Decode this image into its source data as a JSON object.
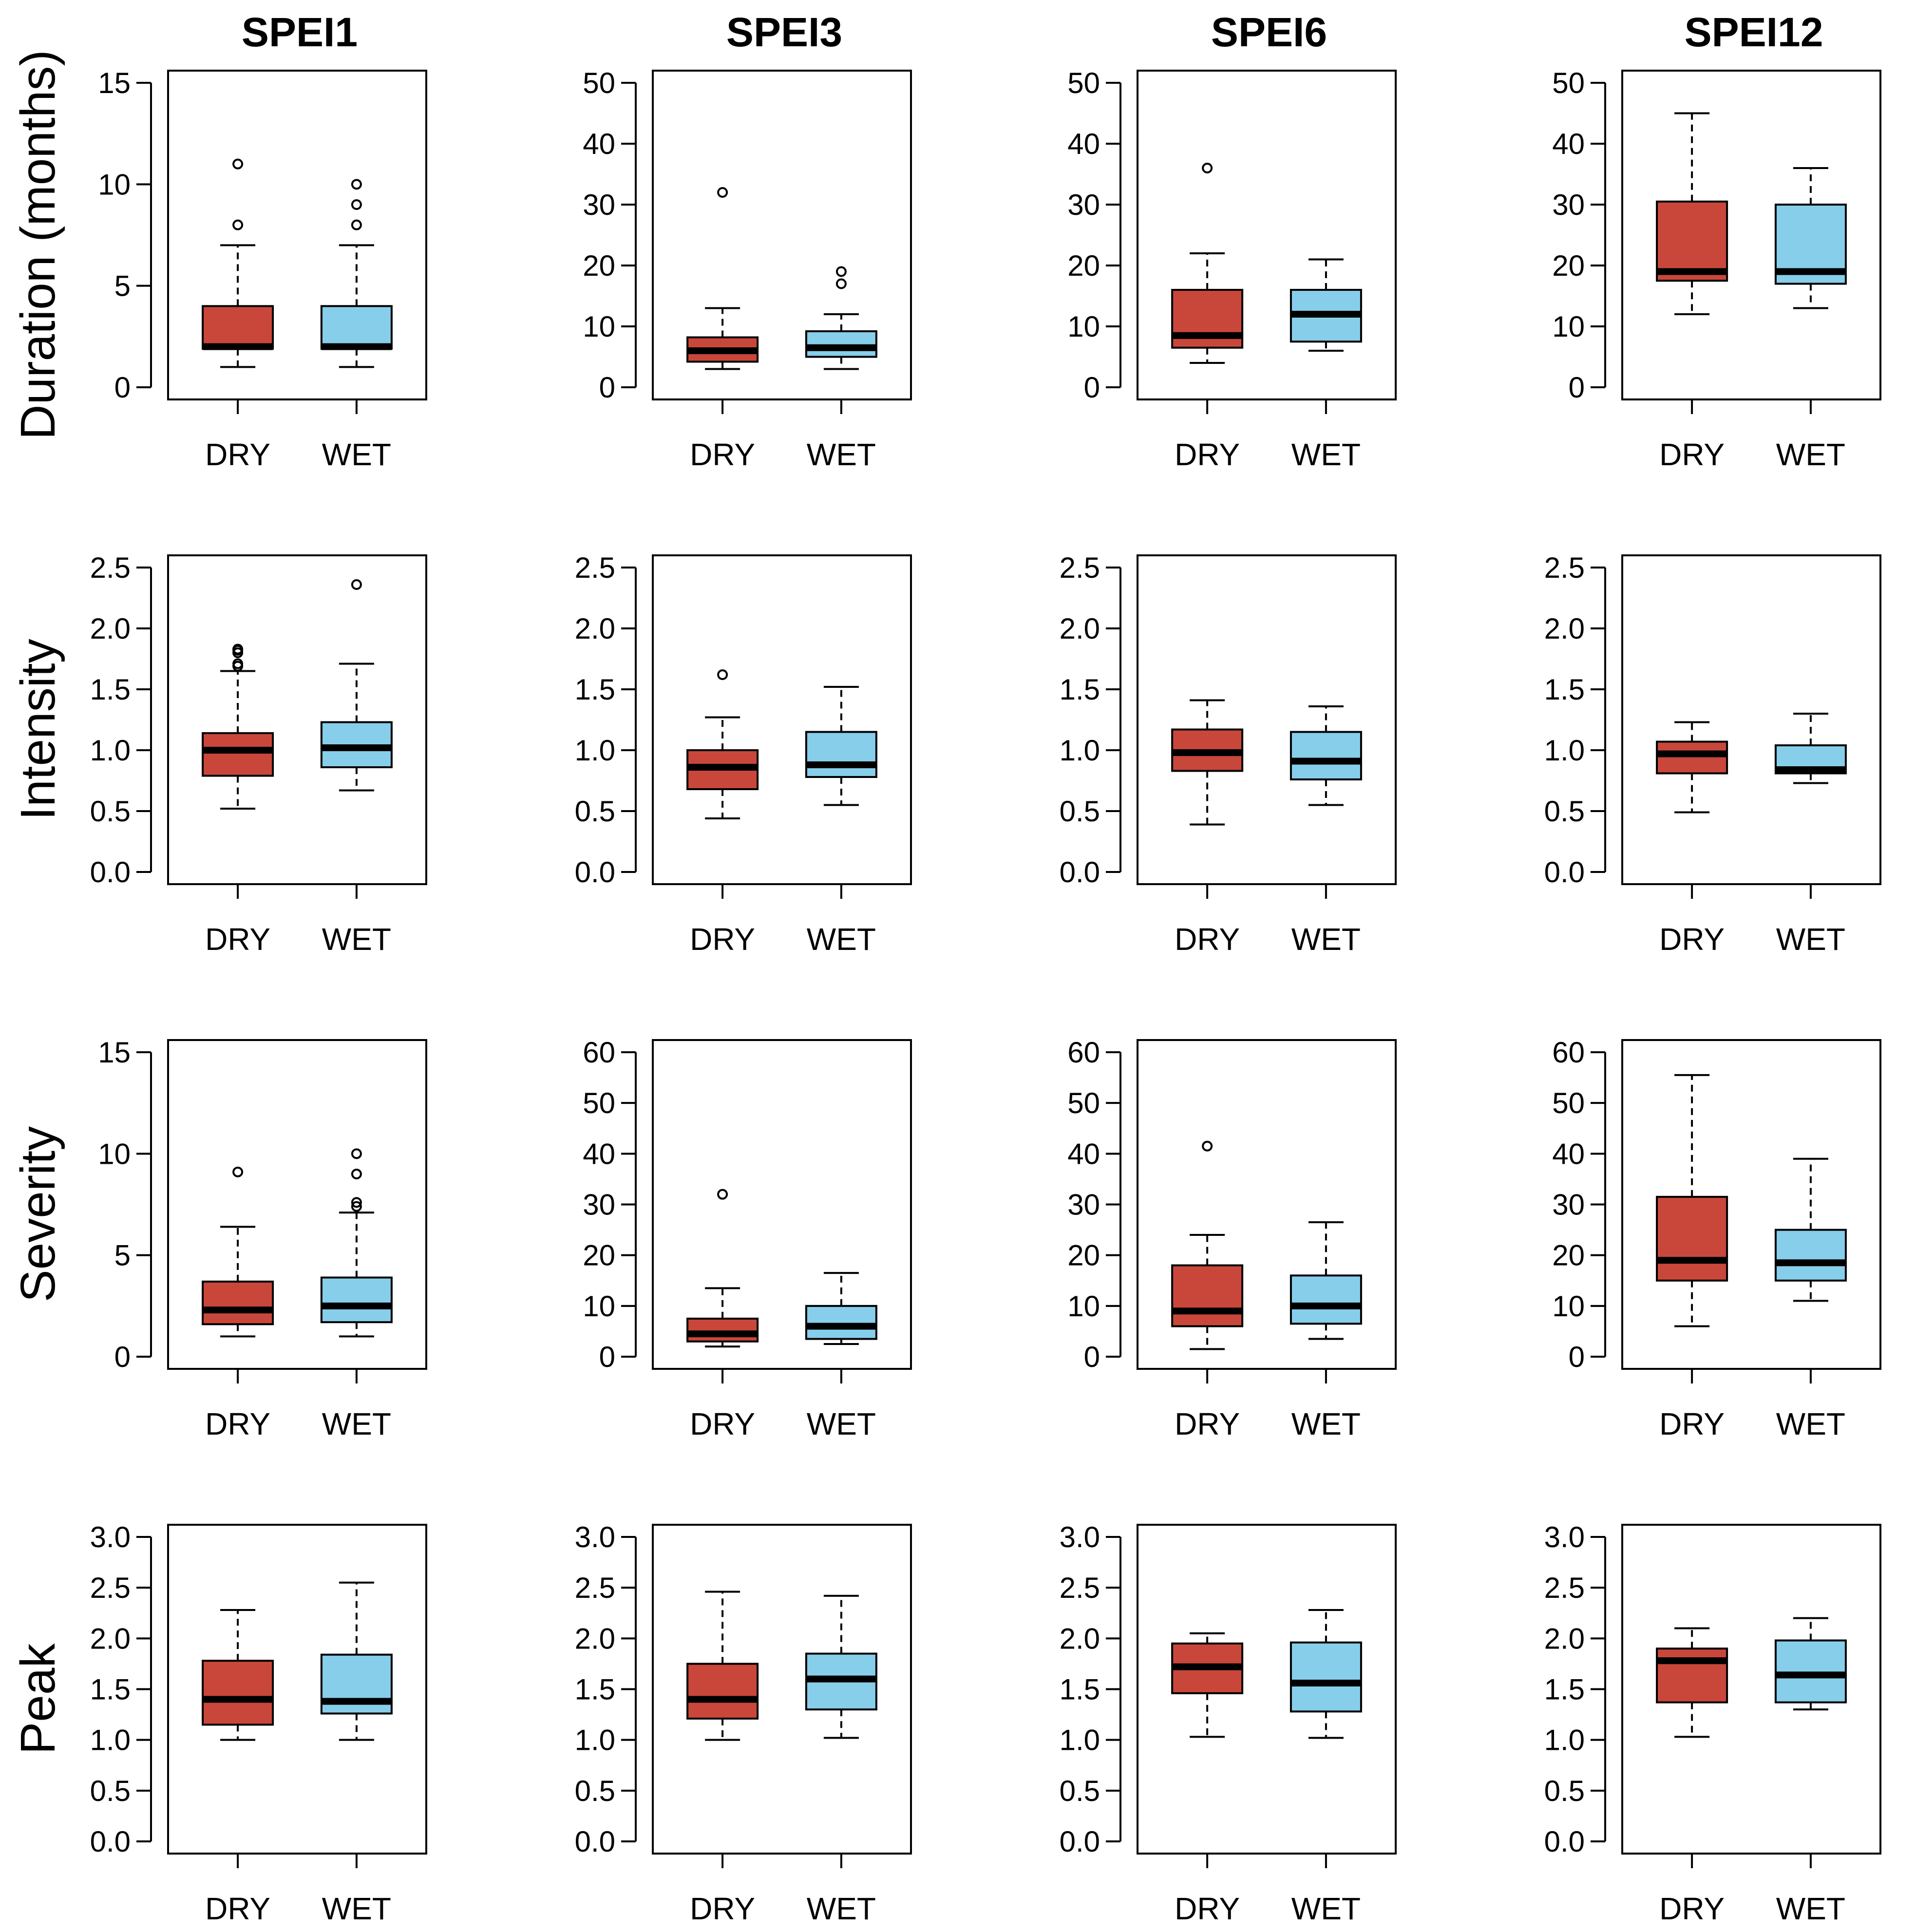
{
  "chart_data": {
    "type": "boxplot",
    "columns": [
      "SPEI1",
      "SPEI3",
      "SPEI6",
      "SPEI12"
    ],
    "rows": [
      "Duration (months)",
      "Intensity",
      "Severity",
      "Peak"
    ],
    "categories": [
      "DRY",
      "WET"
    ],
    "colors": {
      "DRY": "#c9473a",
      "WET": "#87ceeb",
      "line": "#000000"
    },
    "panels": [
      {
        "row": 0,
        "col": 0,
        "ylim": [
          0,
          15
        ],
        "yticks": [
          "0",
          "5",
          "10",
          "15"
        ],
        "boxes": [
          {
            "category": "DRY",
            "whisker_low": 1,
            "q1": 1.9,
            "median": 2,
            "q3": 4,
            "whisker_high": 7,
            "outliers": [
              8,
              11
            ]
          },
          {
            "category": "WET",
            "whisker_low": 1,
            "q1": 1.9,
            "median": 2,
            "q3": 4,
            "whisker_high": 7,
            "outliers": [
              8,
              9,
              10
            ]
          }
        ]
      },
      {
        "row": 0,
        "col": 1,
        "ylim": [
          0,
          50
        ],
        "yticks": [
          "0",
          "10",
          "20",
          "30",
          "40",
          "50"
        ],
        "boxes": [
          {
            "category": "DRY",
            "whisker_low": 3,
            "q1": 4.2,
            "median": 6,
            "q3": 8.2,
            "whisker_high": 13,
            "outliers": [
              32
            ]
          },
          {
            "category": "WET",
            "whisker_low": 3,
            "q1": 5,
            "median": 6.5,
            "q3": 9.2,
            "whisker_high": 12,
            "outliers": [
              17,
              19
            ]
          }
        ]
      },
      {
        "row": 0,
        "col": 2,
        "ylim": [
          0,
          50
        ],
        "yticks": [
          "0",
          "10",
          "20",
          "30",
          "40",
          "50"
        ],
        "boxes": [
          {
            "category": "DRY",
            "whisker_low": 4,
            "q1": 6.5,
            "median": 8.5,
            "q3": 16,
            "whisker_high": 22,
            "outliers": [
              36
            ]
          },
          {
            "category": "WET",
            "whisker_low": 6,
            "q1": 7.5,
            "median": 12,
            "q3": 16,
            "whisker_high": 21,
            "outliers": []
          }
        ]
      },
      {
        "row": 0,
        "col": 3,
        "ylim": [
          0,
          50
        ],
        "yticks": [
          "0",
          "10",
          "20",
          "30",
          "40",
          "50"
        ],
        "boxes": [
          {
            "category": "DRY",
            "whisker_low": 12,
            "q1": 17.5,
            "median": 19,
            "q3": 30.5,
            "whisker_high": 45,
            "outliers": []
          },
          {
            "category": "WET",
            "whisker_low": 13,
            "q1": 17,
            "median": 19,
            "q3": 30,
            "whisker_high": 36,
            "outliers": []
          }
        ]
      },
      {
        "row": 1,
        "col": 0,
        "ylim": [
          0,
          2.5
        ],
        "yticks": [
          "0.0",
          "0.5",
          "1.0",
          "1.5",
          "2.0",
          "2.5"
        ],
        "boxes": [
          {
            "category": "DRY",
            "whisker_low": 0.52,
            "q1": 0.79,
            "median": 1.0,
            "q3": 1.14,
            "whisker_high": 1.65,
            "outliers": [
              1.69,
              1.71,
              1.8,
              1.82,
              1.83
            ]
          },
          {
            "category": "WET",
            "whisker_low": 0.67,
            "q1": 0.86,
            "median": 1.02,
            "q3": 1.23,
            "whisker_high": 1.71,
            "outliers": [
              2.36
            ]
          }
        ]
      },
      {
        "row": 1,
        "col": 1,
        "ylim": [
          0,
          2.5
        ],
        "yticks": [
          "0.0",
          "0.5",
          "1.0",
          "1.5",
          "2.0",
          "2.5"
        ],
        "boxes": [
          {
            "category": "DRY",
            "whisker_low": 0.44,
            "q1": 0.68,
            "median": 0.86,
            "q3": 1.0,
            "whisker_high": 1.27,
            "outliers": [
              1.62
            ]
          },
          {
            "category": "WET",
            "whisker_low": 0.55,
            "q1": 0.78,
            "median": 0.88,
            "q3": 1.15,
            "whisker_high": 1.52,
            "outliers": []
          }
        ]
      },
      {
        "row": 1,
        "col": 2,
        "ylim": [
          0,
          2.5
        ],
        "yticks": [
          "0.0",
          "0.5",
          "1.0",
          "1.5",
          "2.0",
          "2.5"
        ],
        "boxes": [
          {
            "category": "DRY",
            "whisker_low": 0.39,
            "q1": 0.83,
            "median": 0.98,
            "q3": 1.17,
            "whisker_high": 1.41,
            "outliers": []
          },
          {
            "category": "WET",
            "whisker_low": 0.55,
            "q1": 0.76,
            "median": 0.91,
            "q3": 1.15,
            "whisker_high": 1.36,
            "outliers": []
          }
        ]
      },
      {
        "row": 1,
        "col": 3,
        "ylim": [
          0,
          2.5
        ],
        "yticks": [
          "0.0",
          "0.5",
          "1.0",
          "1.5",
          "2.0",
          "2.5"
        ],
        "boxes": [
          {
            "category": "DRY",
            "whisker_low": 0.49,
            "q1": 0.81,
            "median": 0.97,
            "q3": 1.07,
            "whisker_high": 1.23,
            "outliers": []
          },
          {
            "category": "WET",
            "whisker_low": 0.73,
            "q1": 0.81,
            "median": 0.84,
            "q3": 1.04,
            "whisker_high": 1.3,
            "outliers": []
          }
        ]
      },
      {
        "row": 2,
        "col": 0,
        "ylim": [
          0,
          15
        ],
        "yticks": [
          "0",
          "5",
          "10",
          "15"
        ],
        "boxes": [
          {
            "category": "DRY",
            "whisker_low": 1,
            "q1": 1.6,
            "median": 2.3,
            "q3": 3.7,
            "whisker_high": 6.4,
            "outliers": [
              9.1
            ]
          },
          {
            "category": "WET",
            "whisker_low": 1,
            "q1": 1.7,
            "median": 2.5,
            "q3": 3.9,
            "whisker_high": 7.1,
            "outliers": [
              7.4,
              7.6,
              9,
              10
            ]
          }
        ]
      },
      {
        "row": 2,
        "col": 1,
        "ylim": [
          0,
          60
        ],
        "yticks": [
          "0",
          "10",
          "20",
          "30",
          "40",
          "50",
          "60"
        ],
        "boxes": [
          {
            "category": "DRY",
            "whisker_low": 2,
            "q1": 3,
            "median": 4.5,
            "q3": 7.5,
            "whisker_high": 13.5,
            "outliers": [
              32
            ]
          },
          {
            "category": "WET",
            "whisker_low": 2.5,
            "q1": 3.5,
            "median": 6,
            "q3": 10,
            "whisker_high": 16.5,
            "outliers": []
          }
        ]
      },
      {
        "row": 2,
        "col": 2,
        "ylim": [
          0,
          60
        ],
        "yticks": [
          "0",
          "10",
          "20",
          "30",
          "40",
          "50",
          "60"
        ],
        "boxes": [
          {
            "category": "DRY",
            "whisker_low": 1.5,
            "q1": 6,
            "median": 9,
            "q3": 18,
            "whisker_high": 24,
            "outliers": [
              41.5
            ]
          },
          {
            "category": "WET",
            "whisker_low": 3.5,
            "q1": 6.5,
            "median": 10,
            "q3": 16,
            "whisker_high": 26.5,
            "outliers": []
          }
        ]
      },
      {
        "row": 2,
        "col": 3,
        "ylim": [
          0,
          60
        ],
        "yticks": [
          "0",
          "10",
          "20",
          "30",
          "40",
          "50",
          "60"
        ],
        "boxes": [
          {
            "category": "DRY",
            "whisker_low": 6,
            "q1": 15,
            "median": 19,
            "q3": 31.5,
            "whisker_high": 55.5,
            "outliers": []
          },
          {
            "category": "WET",
            "whisker_low": 11,
            "q1": 15,
            "median": 18.5,
            "q3": 25,
            "whisker_high": 39,
            "outliers": []
          }
        ]
      },
      {
        "row": 3,
        "col": 0,
        "ylim": [
          0,
          3
        ],
        "yticks": [
          "0.0",
          "0.5",
          "1.0",
          "1.5",
          "2.0",
          "2.5",
          "3.0"
        ],
        "boxes": [
          {
            "category": "DRY",
            "whisker_low": 1.0,
            "q1": 1.15,
            "median": 1.4,
            "q3": 1.78,
            "whisker_high": 2.28,
            "outliers": []
          },
          {
            "category": "WET",
            "whisker_low": 1.0,
            "q1": 1.26,
            "median": 1.38,
            "q3": 1.84,
            "whisker_high": 2.55,
            "outliers": []
          }
        ]
      },
      {
        "row": 3,
        "col": 1,
        "ylim": [
          0,
          3
        ],
        "yticks": [
          "0.0",
          "0.5",
          "1.0",
          "1.5",
          "2.0",
          "2.5",
          "3.0"
        ],
        "boxes": [
          {
            "category": "DRY",
            "whisker_low": 1.0,
            "q1": 1.21,
            "median": 1.4,
            "q3": 1.75,
            "whisker_high": 2.46,
            "outliers": []
          },
          {
            "category": "WET",
            "whisker_low": 1.02,
            "q1": 1.3,
            "median": 1.6,
            "q3": 1.85,
            "whisker_high": 2.42,
            "outliers": []
          }
        ]
      },
      {
        "row": 3,
        "col": 2,
        "ylim": [
          0,
          3
        ],
        "yticks": [
          "0.0",
          "0.5",
          "1.0",
          "1.5",
          "2.0",
          "2.5",
          "3.0"
        ],
        "boxes": [
          {
            "category": "DRY",
            "whisker_low": 1.03,
            "q1": 1.46,
            "median": 1.72,
            "q3": 1.95,
            "whisker_high": 2.05,
            "outliers": []
          },
          {
            "category": "WET",
            "whisker_low": 1.02,
            "q1": 1.28,
            "median": 1.56,
            "q3": 1.96,
            "whisker_high": 2.28,
            "outliers": []
          }
        ]
      },
      {
        "row": 3,
        "col": 3,
        "ylim": [
          0,
          3
        ],
        "yticks": [
          "0.0",
          "0.5",
          "1.0",
          "1.5",
          "2.0",
          "2.5",
          "3.0"
        ],
        "boxes": [
          {
            "category": "DRY",
            "whisker_low": 1.03,
            "q1": 1.37,
            "median": 1.78,
            "q3": 1.9,
            "whisker_high": 2.1,
            "outliers": []
          },
          {
            "category": "WET",
            "whisker_low": 1.3,
            "q1": 1.37,
            "median": 1.64,
            "q3": 1.98,
            "whisker_high": 2.2,
            "outliers": []
          }
        ]
      }
    ]
  }
}
